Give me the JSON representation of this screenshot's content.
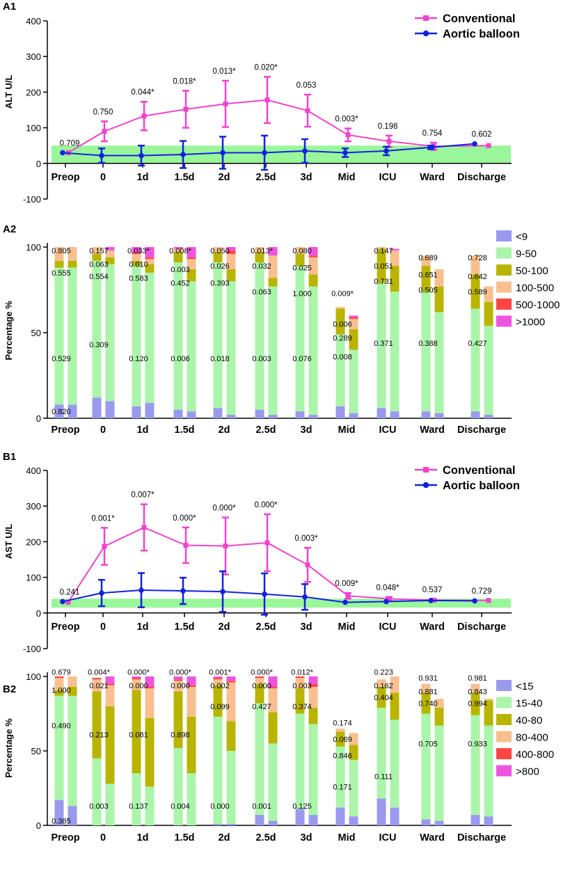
{
  "chart_data": [
    {
      "panel": "A1",
      "type": "line",
      "ylabel": "ALT U/L",
      "ylim": [
        -100,
        400
      ],
      "yticks": [
        "-100",
        "0",
        "100",
        "200",
        "300",
        "400"
      ],
      "categories": [
        "Preop",
        "0",
        "1d",
        "1.5d",
        "2d",
        "2.5d",
        "3d",
        "Mid",
        "ICU",
        "Ward",
        "Discharge"
      ],
      "reference_band": [
        0,
        50
      ],
      "series": [
        {
          "name": "Conventional",
          "color": "#ee44cc",
          "marker": "square",
          "values": [
            30,
            90,
            133,
            152,
            167,
            178,
            148,
            80,
            62,
            48,
            50
          ],
          "err": [
            0,
            28,
            40,
            52,
            65,
            65,
            45,
            18,
            16,
            10,
            0
          ]
        },
        {
          "name": "Aortic balloon",
          "color": "#1122dd",
          "marker": "circle",
          "values": [
            30,
            22,
            22,
            25,
            30,
            30,
            35,
            30,
            35,
            45,
            55
          ],
          "err": [
            0,
            20,
            28,
            38,
            45,
            48,
            33,
            12,
            12,
            5,
            0
          ]
        }
      ],
      "pvalues": [
        "0.709",
        "0.750",
        "0.044*",
        "0.018*",
        "0.013*",
        "0.020*",
        "0.053",
        "0.003*",
        "0.198",
        "0.754",
        "0.602"
      ]
    },
    {
      "panel": "A2",
      "type": "bar",
      "ylabel": "Percentage %",
      "ylim": [
        0,
        100
      ],
      "yticks": [
        "0",
        "50",
        "100"
      ],
      "categories": [
        "Preop",
        "0",
        "1d",
        "1.5d",
        "2d",
        "2.5d",
        "3d",
        "Mid",
        "ICU",
        "Ward",
        "Discharge"
      ],
      "legend": [
        "<9",
        "9-50",
        "50-100",
        "100-500",
        "500-1000",
        ">1000"
      ],
      "colors": [
        "#9999ee",
        "#aaf5aa",
        "#b8b400",
        "#f8c090",
        "#ff4444",
        "#ee55dd"
      ],
      "groups": [
        [
          [
            8,
            80,
            4,
            8,
            0,
            0
          ],
          [
            8,
            80,
            4,
            8,
            0,
            0
          ]
        ],
        [
          [
            12,
            80,
            4,
            4,
            0,
            0
          ],
          [
            10,
            80,
            4,
            4,
            0,
            2
          ]
        ],
        [
          [
            7,
            82,
            3,
            4,
            1,
            3
          ],
          [
            9,
            76,
            5,
            3,
            1,
            6
          ]
        ],
        [
          [
            5,
            86,
            6,
            2,
            0,
            1
          ],
          [
            4,
            76,
            7,
            6,
            1,
            6
          ]
        ],
        [
          [
            6,
            85,
            6,
            3,
            0,
            0
          ],
          [
            2,
            78,
            7,
            9,
            2,
            2
          ]
        ],
        [
          [
            5,
            86,
            6,
            3,
            0,
            0
          ],
          [
            2,
            75,
            5,
            13,
            0,
            5
          ]
        ],
        [
          [
            4,
            85,
            7,
            4,
            0,
            0
          ],
          [
            2,
            75,
            7,
            10,
            1,
            5
          ]
        ],
        [
          [
            7,
            42,
            15,
            1,
            0,
            0
          ],
          [
            3,
            37,
            12,
            6,
            1,
            1
          ]
        ],
        [
          [
            6,
            73,
            20,
            1,
            0,
            0
          ],
          [
            4,
            70,
            15,
            9,
            0,
            1
          ]
        ],
        [
          [
            4,
            70,
            15,
            6,
            0,
            0
          ],
          [
            3,
            59,
            15,
            10,
            0,
            0
          ]
        ],
        [
          [
            4,
            60,
            20,
            11,
            0,
            0
          ],
          [
            2,
            52,
            14,
            9,
            0,
            0
          ]
        ]
      ],
      "labels": [
        {
          "group": 0,
          "y": 98,
          "text": "0.805"
        },
        {
          "group": 0,
          "y": 85,
          "text": "0.555"
        },
        {
          "group": 0,
          "y": 35,
          "text": "0.529"
        },
        {
          "group": 0,
          "y": 4,
          "text": "0.820"
        },
        {
          "group": 1,
          "y": 98,
          "text": "0.157"
        },
        {
          "group": 1,
          "y": 90,
          "text": "0.063"
        },
        {
          "group": 1,
          "y": 83,
          "text": "0.554"
        },
        {
          "group": 1,
          "y": 43,
          "text": "0.309"
        },
        {
          "group": 2,
          "y": 98,
          "text": "0.033*"
        },
        {
          "group": 2,
          "y": 90,
          "text": "0.010"
        },
        {
          "group": 2,
          "y": 82,
          "text": "0.583"
        },
        {
          "group": 2,
          "y": 35,
          "text": "0.120"
        },
        {
          "group": 3,
          "y": 98,
          "text": "0.008*"
        },
        {
          "group": 3,
          "y": 87,
          "text": "0.003"
        },
        {
          "group": 3,
          "y": 79,
          "text": "0.452"
        },
        {
          "group": 3,
          "y": 35,
          "text": "0.006"
        },
        {
          "group": 4,
          "y": 98,
          "text": "0.050"
        },
        {
          "group": 4,
          "y": 89,
          "text": "0.026"
        },
        {
          "group": 4,
          "y": 79,
          "text": "0.393"
        },
        {
          "group": 4,
          "y": 35,
          "text": "0.018"
        },
        {
          "group": 5,
          "y": 98,
          "text": "0.013*"
        },
        {
          "group": 5,
          "y": 89,
          "text": "0.032"
        },
        {
          "group": 5,
          "y": 74,
          "text": "0.063"
        },
        {
          "group": 5,
          "y": 35,
          "text": "0.003"
        },
        {
          "group": 6,
          "y": 98,
          "text": "0.080"
        },
        {
          "group": 6,
          "y": 88,
          "text": "0.025"
        },
        {
          "group": 6,
          "y": 73,
          "text": "1.000"
        },
        {
          "group": 6,
          "y": 35,
          "text": "0.076"
        },
        {
          "group": 7,
          "y": 73,
          "text": "0.009*"
        },
        {
          "group": 7,
          "y": 55,
          "text": "0.006"
        },
        {
          "group": 7,
          "y": 47,
          "text": "0.289"
        },
        {
          "group": 7,
          "y": 36,
          "text": "0.008"
        },
        {
          "group": 8,
          "y": 98,
          "text": "0.147"
        },
        {
          "group": 8,
          "y": 89,
          "text": "0.051"
        },
        {
          "group": 8,
          "y": 80,
          "text": "0.731"
        },
        {
          "group": 8,
          "y": 44,
          "text": "0.371"
        },
        {
          "group": 9,
          "y": 94,
          "text": "0.689"
        },
        {
          "group": 9,
          "y": 84,
          "text": "0.651"
        },
        {
          "group": 9,
          "y": 75,
          "text": "0.505"
        },
        {
          "group": 9,
          "y": 44,
          "text": "0.388"
        },
        {
          "group": 10,
          "y": 94,
          "text": "0.728"
        },
        {
          "group": 10,
          "y": 83,
          "text": "0.642"
        },
        {
          "group": 10,
          "y": 74,
          "text": "0.589"
        },
        {
          "group": 10,
          "y": 44,
          "text": "0.427"
        }
      ]
    },
    {
      "panel": "B1",
      "type": "line",
      "ylabel": "AST U/L",
      "ylim": [
        -100,
        400
      ],
      "yticks": [
        "-100",
        "0",
        "100",
        "200",
        "300",
        "400"
      ],
      "categories": [
        "Preop",
        "0",
        "1d",
        "1.5d",
        "2d",
        "2.5d",
        "3d",
        "Mid",
        "ICU",
        "Ward",
        "Discharge"
      ],
      "reference_band": [
        15,
        40
      ],
      "series": [
        {
          "name": "Conventional",
          "color": "#ee44cc",
          "marker": "square",
          "values": [
            30,
            187,
            240,
            190,
            188,
            197,
            135,
            48,
            40,
            36,
            35
          ],
          "err": [
            0,
            52,
            65,
            50,
            80,
            80,
            48,
            8,
            5,
            3,
            0
          ]
        },
        {
          "name": "Aortic balloon",
          "color": "#1122dd",
          "marker": "circle",
          "values": [
            32,
            56,
            64,
            62,
            60,
            53,
            45,
            30,
            32,
            35,
            34
          ],
          "err": [
            0,
            37,
            48,
            37,
            57,
            58,
            36,
            0,
            0,
            0,
            0
          ]
        }
      ],
      "pvalues": [
        "0.241",
        "0.001*",
        "0.007*",
        "0.000*",
        "0.000*",
        "0.000*",
        "0.003*",
        "0.009*",
        "0.048*",
        "0.537",
        "0.729"
      ]
    },
    {
      "panel": "B2",
      "type": "bar",
      "ylabel": "Percentage %",
      "ylim": [
        0,
        100
      ],
      "yticks": [
        "0",
        "50",
        "100"
      ],
      "categories": [
        "Preop",
        "0",
        "1d",
        "1.5d",
        "2d",
        "2.5d",
        "3d",
        "Mid",
        "ICU",
        "Ward",
        "Discharge"
      ],
      "legend": [
        "<15",
        "15-40",
        "40-80",
        "80-400",
        "400-800",
        ">800"
      ],
      "colors": [
        "#9999ee",
        "#aaf5aa",
        "#b8b400",
        "#f8c090",
        "#ff4444",
        "#ee55dd"
      ],
      "groups": [
        [
          [
            17,
            70,
            4,
            8,
            1,
            0
          ],
          [
            13,
            74,
            6,
            7,
            0,
            0
          ]
        ],
        [
          [
            0,
            45,
            45,
            8,
            1,
            0
          ],
          [
            0,
            28,
            52,
            14,
            1,
            5
          ]
        ],
        [
          [
            0,
            35,
            56,
            7,
            1,
            1
          ],
          [
            0,
            26,
            46,
            20,
            1,
            7
          ]
        ],
        [
          [
            0,
            52,
            38,
            7,
            1,
            2
          ],
          [
            0,
            35,
            38,
            20,
            1,
            6
          ]
        ],
        [
          [
            1,
            72,
            21,
            4,
            1,
            1
          ],
          [
            1,
            49,
            20,
            26,
            1,
            3
          ]
        ],
        [
          [
            7,
            75,
            13,
            4,
            1,
            0
          ],
          [
            3,
            52,
            21,
            16,
            1,
            7
          ]
        ],
        [
          [
            11,
            64,
            17,
            7,
            1,
            0
          ],
          [
            7,
            61,
            11,
            14,
            2,
            5
          ]
        ],
        [
          [
            12,
            41,
            10,
            2,
            0,
            0
          ],
          [
            6,
            38,
            10,
            8,
            0,
            0
          ]
        ],
        [
          [
            18,
            61,
            14,
            5,
            0,
            0
          ],
          [
            12,
            59,
            18,
            11,
            0,
            0
          ]
        ],
        [
          [
            4,
            71,
            14,
            6,
            0,
            0
          ],
          [
            3,
            64,
            12,
            6,
            0,
            0
          ]
        ],
        [
          [
            7,
            67,
            15,
            6,
            0,
            0
          ],
          [
            6,
            61,
            17,
            1,
            0,
            0
          ]
        ]
      ],
      "labels": [
        {
          "group": 0,
          "y": 103,
          "text": "0.679"
        },
        {
          "group": 0,
          "y": 91,
          "text": "1.000"
        },
        {
          "group": 0,
          "y": 67,
          "text": "0.490"
        },
        {
          "group": 0,
          "y": 3,
          "text": "0.385"
        },
        {
          "group": 1,
          "y": 103,
          "text": "0.004*"
        },
        {
          "group": 1,
          "y": 94,
          "text": "0.021"
        },
        {
          "group": 1,
          "y": 61,
          "text": "0.213"
        },
        {
          "group": 1,
          "y": 13,
          "text": "0.003"
        },
        {
          "group": 2,
          "y": 103,
          "text": "0.000*"
        },
        {
          "group": 2,
          "y": 94,
          "text": "0.000"
        },
        {
          "group": 2,
          "y": 61,
          "text": "0.081"
        },
        {
          "group": 2,
          "y": 13,
          "text": "0.137"
        },
        {
          "group": 3,
          "y": 103,
          "text": "0.000*"
        },
        {
          "group": 3,
          "y": 94,
          "text": "0.000"
        },
        {
          "group": 3,
          "y": 61,
          "text": "0.898"
        },
        {
          "group": 3,
          "y": 13,
          "text": "0.004"
        },
        {
          "group": 4,
          "y": 103,
          "text": "0.001*"
        },
        {
          "group": 4,
          "y": 94,
          "text": "0.002"
        },
        {
          "group": 4,
          "y": 80,
          "text": "0.099"
        },
        {
          "group": 4,
          "y": 13,
          "text": "0.000"
        },
        {
          "group": 5,
          "y": 103,
          "text": "0.000*"
        },
        {
          "group": 5,
          "y": 94,
          "text": "0.000"
        },
        {
          "group": 5,
          "y": 80,
          "text": "0.427"
        },
        {
          "group": 5,
          "y": 13,
          "text": "0.001"
        },
        {
          "group": 6,
          "y": 103,
          "text": "0.012*"
        },
        {
          "group": 6,
          "y": 94,
          "text": "0.003"
        },
        {
          "group": 6,
          "y": 80,
          "text": "0.374"
        },
        {
          "group": 6,
          "y": 13,
          "text": "0.125"
        },
        {
          "group": 7,
          "y": 69,
          "text": "0.174"
        },
        {
          "group": 7,
          "y": 58,
          "text": "0.069"
        },
        {
          "group": 7,
          "y": 47,
          "text": "0.846"
        },
        {
          "group": 7,
          "y": 26,
          "text": "0.171"
        },
        {
          "group": 8,
          "y": 103,
          "text": "0.223"
        },
        {
          "group": 8,
          "y": 94,
          "text": "0.162"
        },
        {
          "group": 8,
          "y": 86,
          "text": "0.404"
        },
        {
          "group": 8,
          "y": 33,
          "text": "0.111"
        },
        {
          "group": 9,
          "y": 99,
          "text": "0.931"
        },
        {
          "group": 9,
          "y": 90,
          "text": "0.881"
        },
        {
          "group": 9,
          "y": 82,
          "text": "0.740"
        },
        {
          "group": 9,
          "y": 55,
          "text": "0.705"
        },
        {
          "group": 10,
          "y": 99,
          "text": "0.981"
        },
        {
          "group": 10,
          "y": 90,
          "text": "0.843"
        },
        {
          "group": 10,
          "y": 82,
          "text": "0.994"
        },
        {
          "group": 10,
          "y": 55,
          "text": "0.933"
        }
      ]
    }
  ]
}
